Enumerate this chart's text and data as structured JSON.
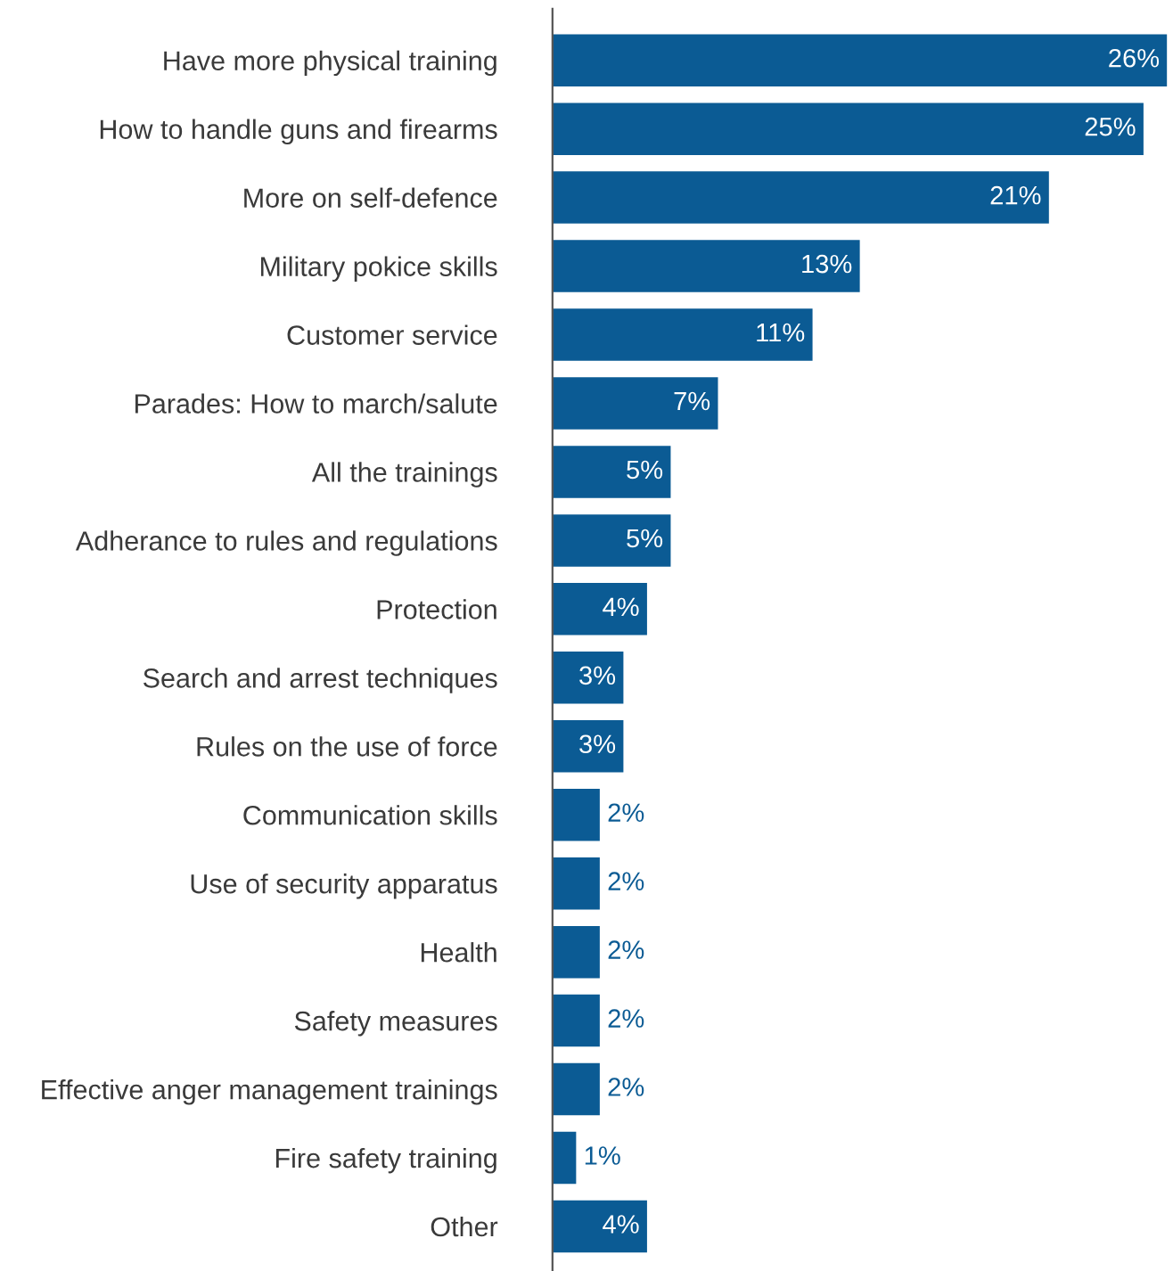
{
  "chart_data": {
    "type": "bar",
    "orientation": "horizontal",
    "categories": [
      "Have more physical training",
      "How to handle guns and firearms",
      "More on self-defence",
      "Military pokice skills",
      "Customer service",
      "Parades: How to march/salute",
      "All the trainings",
      "Adherance to rules and regulations",
      "Protection",
      "Search and arrest techniques",
      "Rules on the use of force",
      "Communication skills",
      "Use of security apparatus",
      "Health",
      "Safety measures",
      "Effective anger management trainings",
      "Fire safety training",
      "Other"
    ],
    "values": [
      26,
      25,
      21,
      13,
      11,
      7,
      5,
      5,
      4,
      3,
      3,
      2,
      2,
      2,
      2,
      2,
      1,
      4
    ],
    "value_labels": [
      "26%",
      "25%",
      "21%",
      "13%",
      "11%",
      "7%",
      "5%",
      "5%",
      "4%",
      "3%",
      "3%",
      "2%",
      "2%",
      "2%",
      "2%",
      "2%",
      "1%",
      "4%"
    ],
    "color": "#0b5b94",
    "grid": false,
    "legend": false
  }
}
